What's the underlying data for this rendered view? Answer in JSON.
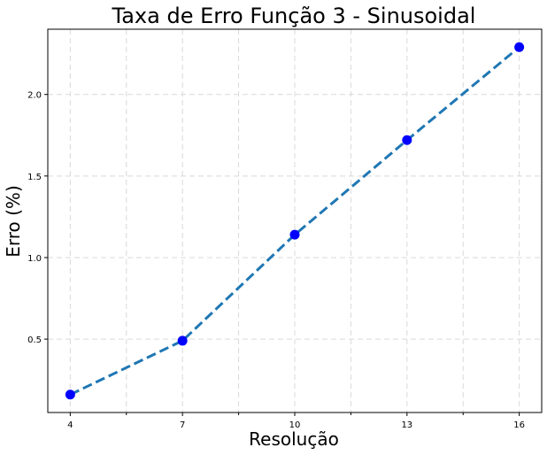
{
  "chart_data": {
    "type": "line",
    "title": "Taxa de Erro Função 3 - Sinusoidal",
    "xlabel": "Resolução",
    "ylabel": "Erro (%)",
    "x": [
      4,
      7,
      10,
      13,
      16
    ],
    "series": [
      {
        "values": [
          0.16,
          0.49,
          1.14,
          1.72,
          2.29
        ],
        "color": "#1f77b4",
        "marker_color": "#0000ff",
        "line_style": "dashed"
      }
    ],
    "xticks": [
      4,
      7,
      10,
      13,
      16
    ],
    "xtick_labels": [
      "4",
      "7",
      "10",
      "13",
      "16"
    ],
    "xminor_ticks": [
      5.5,
      8.5,
      11.5,
      14.5
    ],
    "yticks": [
      0.5,
      1.0,
      1.5,
      2.0
    ],
    "ytick_labels": [
      "0.5",
      "1.0",
      "1.5",
      "2.0"
    ],
    "xlim": [
      3.4,
      16.6
    ],
    "ylim": [
      0.05,
      2.4
    ],
    "grid": true,
    "grid_color": "#d9d9d9"
  }
}
